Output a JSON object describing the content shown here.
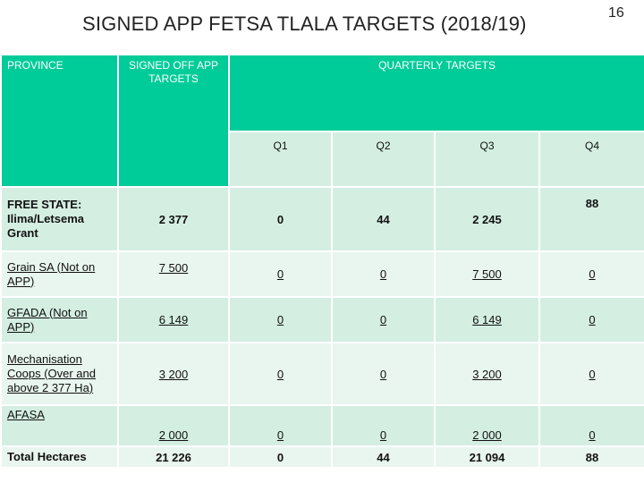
{
  "slide": {
    "title": "SIGNED APP FETSA TLALA TARGETS (2018/19)",
    "page_number": "16"
  },
  "table": {
    "headers": {
      "province": "PROVINCE",
      "signed_targets": "SIGNED OFF APP TARGETS",
      "quarterly": "QUARTERLY TARGETS",
      "quarters": [
        "Q1",
        "Q2",
        "Q3",
        "Q4"
      ]
    },
    "rows": [
      {
        "label": "FREE STATE: Ilima/Letsema Grant",
        "signed": "2 377",
        "q1": "0",
        "q2": "44",
        "q3": "2 245",
        "q4": "88"
      },
      {
        "label": "Grain SA (Not on APP)",
        "signed": "7 500",
        "q1": "0",
        "q2": "0",
        "q3": "7 500",
        "q4": "0"
      },
      {
        "label": "GFADA (Not on APP)",
        "signed": "6 149",
        "q1": "0",
        "q2": "0",
        "q3": "6 149",
        "q4": "0"
      },
      {
        "label": "Mechanisation Coops (Over and above 2 377 Ha)",
        "signed": "3 200",
        "q1": "0",
        "q2": "0",
        "q3": "3 200",
        "q4": "0"
      },
      {
        "label": "AFASA",
        "signed": "2 000",
        "q1": "0",
        "q2": "0",
        "q3": "2 000",
        "q4": "0"
      },
      {
        "label": "Total Hectares",
        "signed": "21 226",
        "q1": "0",
        "q2": "44",
        "q3": "21 094",
        "q4": "88"
      }
    ]
  },
  "colors": {
    "header_green": "#00cc99",
    "band_dark": "#d4efe2",
    "band_light": "#e9f6ef"
  }
}
